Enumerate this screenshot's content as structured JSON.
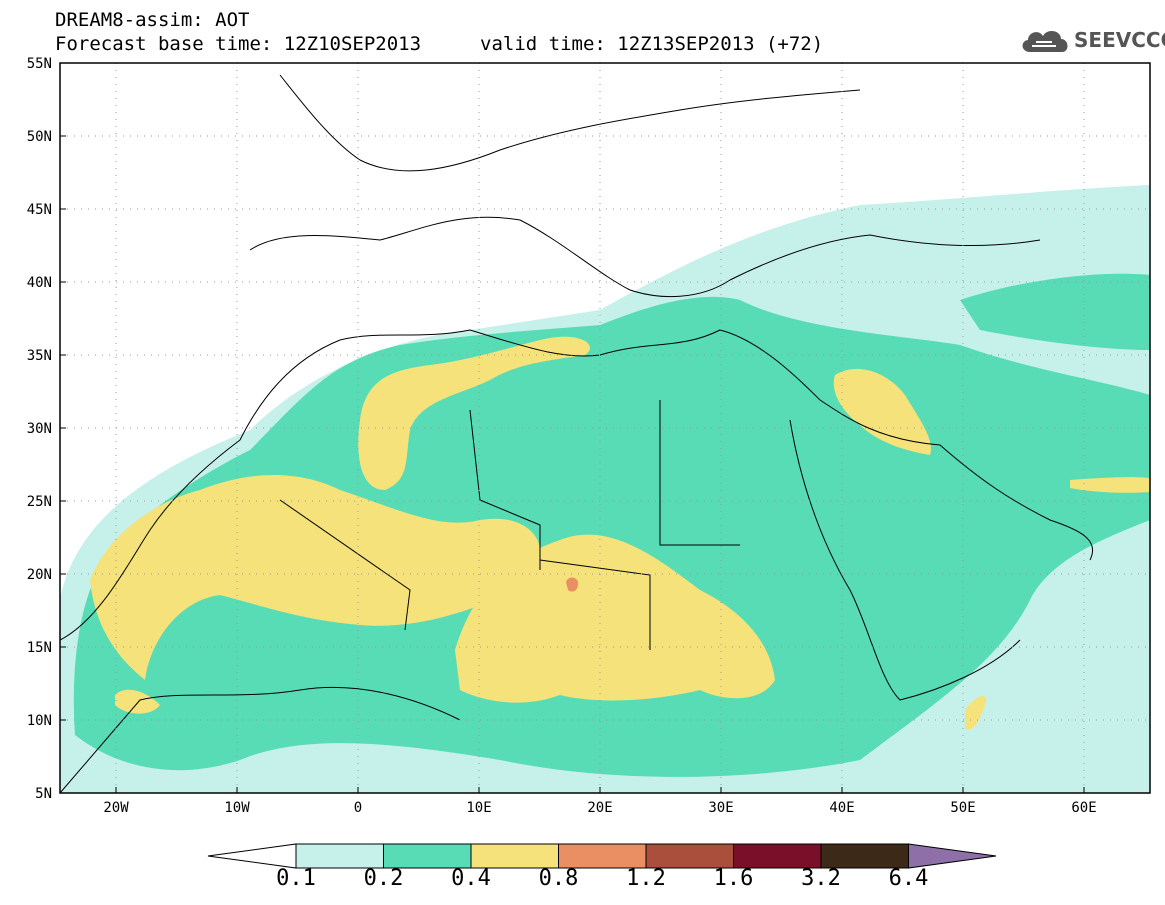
{
  "header": {
    "line1": "DREAM8-assim: AOT",
    "line2": "Forecast base time: 12Z10SEP2013",
    "line3": "valid time: 12Z13SEP2013 (+72)"
  },
  "logo": {
    "text": "SEEVCCC",
    "icon": "cloud-icon"
  },
  "map": {
    "lon_range": [
      -25,
      65
    ],
    "lat_range": [
      5,
      55
    ],
    "lon_ticks": [
      "20W",
      "10W",
      "0",
      "10E",
      "20E",
      "30E",
      "40E",
      "50E",
      "60E"
    ],
    "lat_ticks": [
      "5N",
      "10N",
      "15N",
      "20N",
      "25N",
      "30N",
      "35N",
      "40N",
      "45N",
      "50N",
      "55N"
    ],
    "grid": true
  },
  "colorbar": {
    "labels": [
      "0.1",
      "0.2",
      "0.4",
      "0.8",
      "1.2",
      "1.6",
      "3.2",
      "6.4"
    ],
    "colors": [
      "#ffffff",
      "#c6f0ea",
      "#57dcb6",
      "#f5e27a",
      "#ea8f63",
      "#a94f3c",
      "#7a0f2a",
      "#3d2918",
      "#8e6fa8"
    ]
  }
}
